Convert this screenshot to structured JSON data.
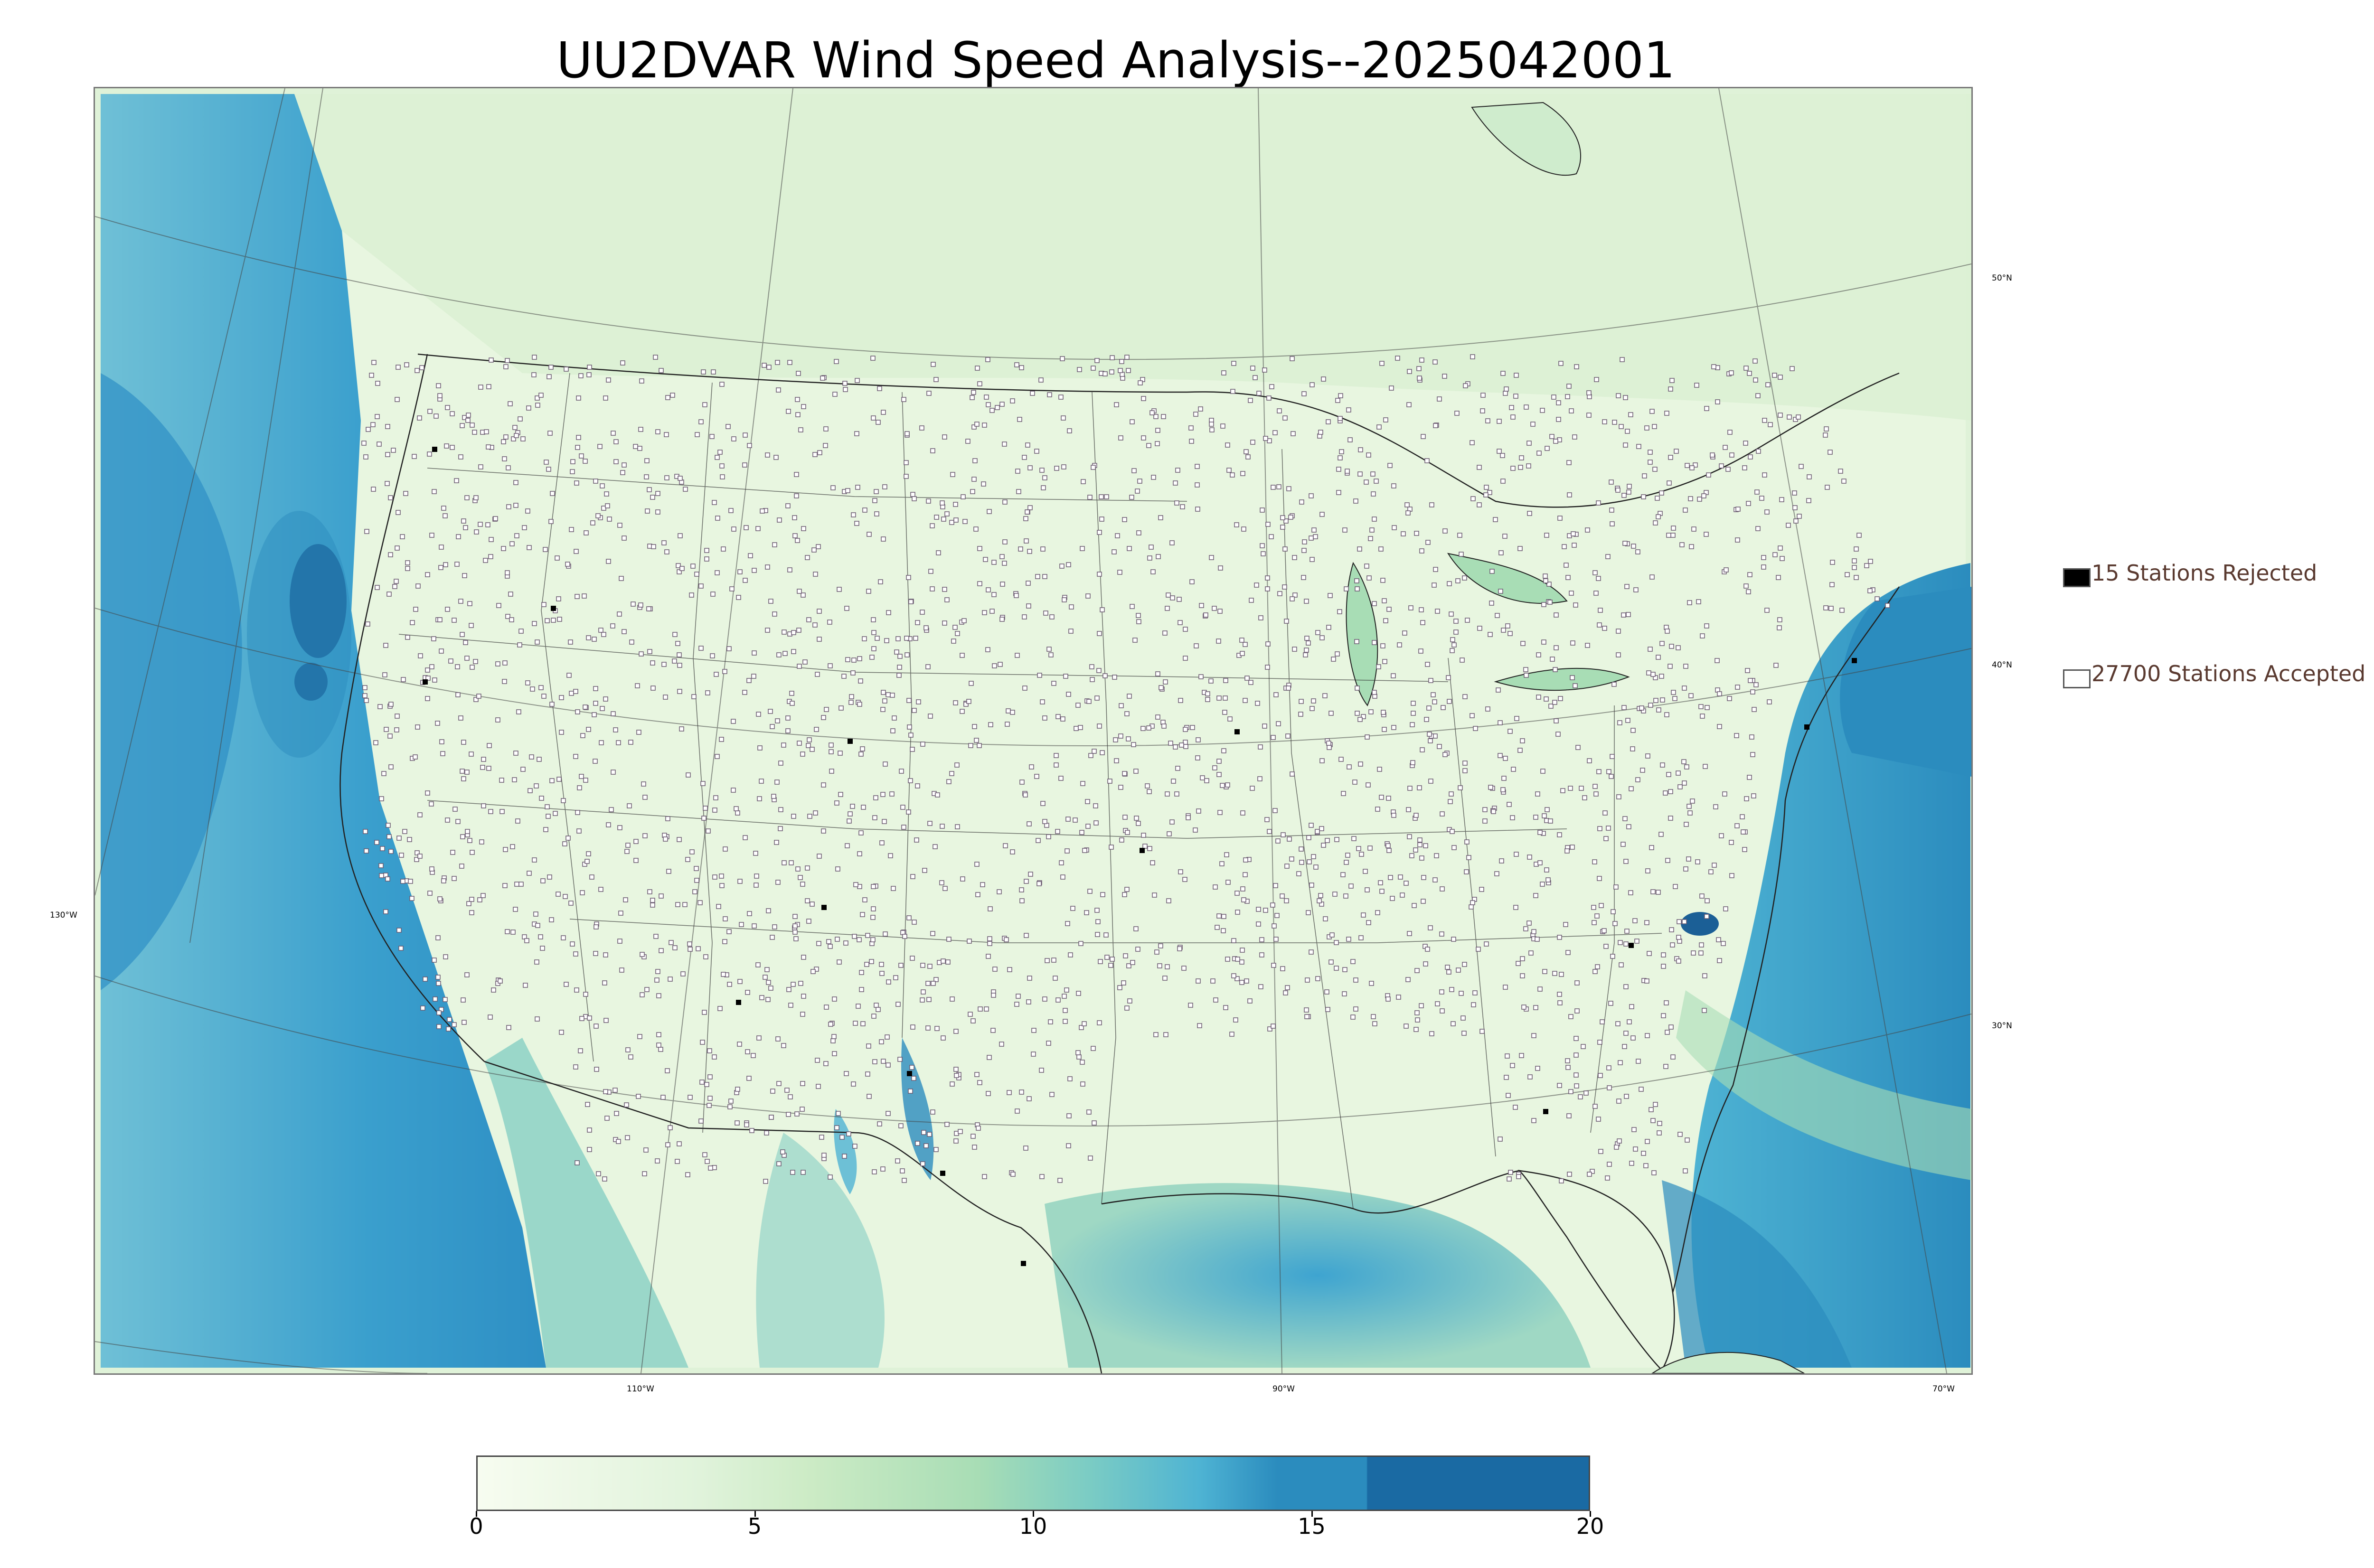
{
  "title": "UU2DVAR Wind Speed Analysis--2025042001",
  "map": {
    "latitude_labels": [
      "50°N",
      "40°N",
      "30°N"
    ],
    "longitude_labels": [
      "130°W",
      "110°W",
      "90°W",
      "70°W"
    ],
    "field": "wind speed analysis",
    "colormap": "GnBu"
  },
  "legend": {
    "rejected_label": "15 Stations Rejected",
    "accepted_label": "27700 Stations Accepted",
    "rejected_color": "#000000",
    "accepted_color": "#ffffff"
  },
  "colorbar": {
    "min": 0,
    "max": 20,
    "tick_labels": [
      "0",
      "5",
      "10",
      "15",
      "20"
    ]
  },
  "colors": {
    "land_light": "#e6f5de",
    "ocean_blue": "#2e8fc4",
    "deep_blue": "#1b5f96",
    "station_outline": "#6a5a70"
  }
}
